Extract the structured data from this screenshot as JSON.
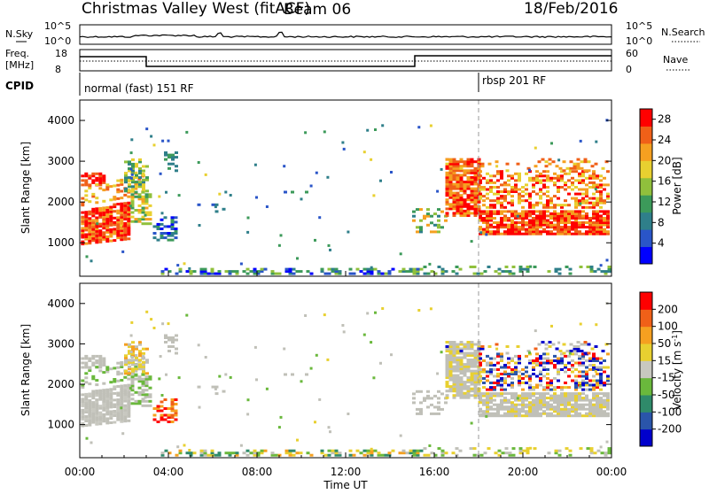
{
  "header": {
    "station": "Christmas Valley West (fitACF)",
    "beam": "Beam 06",
    "date": "18/Feb/2016"
  },
  "strips": {
    "nsky_label": "N.Sky",
    "nsearch_label": "N.Search",
    "noise_ticks": [
      "10^5",
      "10^0"
    ],
    "freq_label_1": "Freq.",
    "freq_label_2": "[MHz]",
    "freq_ticks": [
      "18",
      "8"
    ],
    "nave_label": "Nave",
    "nave_ticks": [
      "60",
      "0"
    ],
    "cpid_label": "CPID",
    "cpid_segments": [
      {
        "label": "normal (fast) 151 RF",
        "start_hour": 0
      },
      {
        "label": "rbsp 201 RF",
        "start_hour": 18
      }
    ]
  },
  "chart_data": [
    {
      "type": "heatmap",
      "panel": "power",
      "xlabel": "Time UT",
      "ylabel": "Slant Range [km]",
      "xlim": [
        0,
        24
      ],
      "ylim": [
        180,
        4500
      ],
      "x_ticks": [
        "00:00",
        "04:00",
        "08:00",
        "12:00",
        "16:00",
        "20:00",
        "00:00"
      ],
      "y_ticks": [
        1000,
        2000,
        3000,
        4000
      ],
      "colorbar": {
        "label": "Power [dB]",
        "ticks": [
          4,
          8,
          12,
          16,
          20,
          24,
          28
        ],
        "range": [
          0,
          30
        ],
        "colors": [
          "#0000ff",
          "#2a55c8",
          "#2f7f8a",
          "#3c9a5a",
          "#90c03c",
          "#e8d030",
          "#f5a020",
          "#f06018",
          "#ff0000"
        ]
      }
    },
    {
      "type": "heatmap",
      "panel": "velocity",
      "xlabel": "Time UT",
      "ylabel": "Slant Range [km]",
      "xlim": [
        0,
        24
      ],
      "ylim": [
        180,
        4500
      ],
      "x_ticks": [
        "00:00",
        "04:00",
        "08:00",
        "12:00",
        "16:00",
        "20:00",
        "00:00"
      ],
      "y_ticks": [
        1000,
        2000,
        3000,
        4000
      ],
      "colorbar": {
        "label": "Velocity [m s",
        "label_sup": "-1",
        "label_end": "]",
        "ticks": [
          200,
          100,
          50,
          15,
          -15,
          -50,
          -100,
          -200
        ],
        "colors": [
          "#0000cc",
          "#2a55aa",
          "#2f8a6a",
          "#6ab83c",
          "#c8c8c0",
          "#e8d030",
          "#f5a020",
          "#f06018",
          "#ff0000"
        ]
      }
    }
  ],
  "colors": {
    "ground_scatter": "#c0c0b8",
    "sep_line": "#999999"
  }
}
